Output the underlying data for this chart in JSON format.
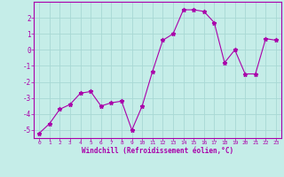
{
  "x": [
    0,
    1,
    2,
    3,
    4,
    5,
    6,
    7,
    8,
    9,
    10,
    11,
    12,
    13,
    14,
    15,
    16,
    17,
    18,
    19,
    20,
    21,
    22,
    23
  ],
  "y": [
    -5.2,
    -4.6,
    -3.7,
    -3.4,
    -2.7,
    -2.6,
    -3.5,
    -3.3,
    -3.2,
    -5.0,
    -3.5,
    -1.35,
    0.6,
    1.0,
    2.5,
    2.5,
    2.4,
    1.7,
    -0.8,
    0.0,
    -1.5,
    -1.5,
    0.7,
    0.6
  ],
  "line_color": "#AA00AA",
  "marker": "*",
  "marker_size": 3.5,
  "bg_color": "#C5EDE8",
  "grid_color": "#A8D8D4",
  "xlabel": "Windchill (Refroidissement éolien,°C)",
  "tick_color": "#AA00AA",
  "xlim": [
    -0.5,
    23.5
  ],
  "ylim": [
    -5.5,
    3.0
  ],
  "yticks": [
    -5,
    -4,
    -3,
    -2,
    -1,
    0,
    1,
    2
  ],
  "xticks": [
    0,
    1,
    2,
    3,
    4,
    5,
    6,
    7,
    8,
    9,
    10,
    11,
    12,
    13,
    14,
    15,
    16,
    17,
    18,
    19,
    20,
    21,
    22,
    23
  ],
  "border_color": "#AA00AA",
  "figsize": [
    3.2,
    2.0
  ],
  "dpi": 100
}
